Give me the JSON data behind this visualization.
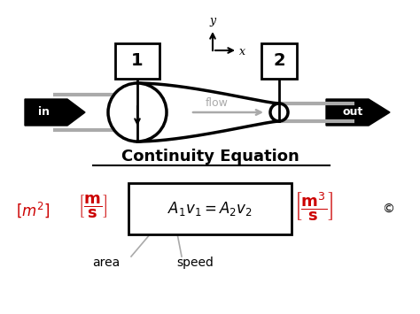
{
  "title": "Continuity Equation",
  "bg_color": "#ffffff",
  "black": "#000000",
  "red": "#cc0000",
  "gray": "#aaaaaa",
  "label1": "1",
  "label2": "2",
  "label_in": "in",
  "label_out": "out",
  "label_flow": "flow",
  "label_x": "x",
  "label_y": "y",
  "label_area": "area",
  "label_speed": "speed"
}
